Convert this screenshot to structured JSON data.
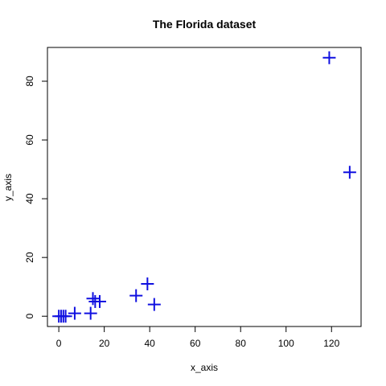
{
  "chart_data": {
    "type": "scatter",
    "title": "The Florida dataset",
    "xlabel": "x_axis",
    "ylabel": "y_axis",
    "xlim": [
      -5,
      133
    ],
    "ylim": [
      -3.5,
      91.5
    ],
    "x_ticks": [
      0,
      20,
      40,
      60,
      80,
      100,
      120
    ],
    "y_ticks": [
      0,
      20,
      40,
      60,
      80
    ],
    "grid": false,
    "marker_color": "#1010e0",
    "marker": "plus",
    "points": [
      {
        "x": 0,
        "y": 0
      },
      {
        "x": 1,
        "y": 0
      },
      {
        "x": 2,
        "y": 0
      },
      {
        "x": 3,
        "y": 0
      },
      {
        "x": 7,
        "y": 1
      },
      {
        "x": 14,
        "y": 1
      },
      {
        "x": 15,
        "y": 6
      },
      {
        "x": 16,
        "y": 5
      },
      {
        "x": 18,
        "y": 5
      },
      {
        "x": 34,
        "y": 7
      },
      {
        "x": 39,
        "y": 11
      },
      {
        "x": 42,
        "y": 4
      },
      {
        "x": 119,
        "y": 88
      },
      {
        "x": 128,
        "y": 49
      }
    ]
  }
}
